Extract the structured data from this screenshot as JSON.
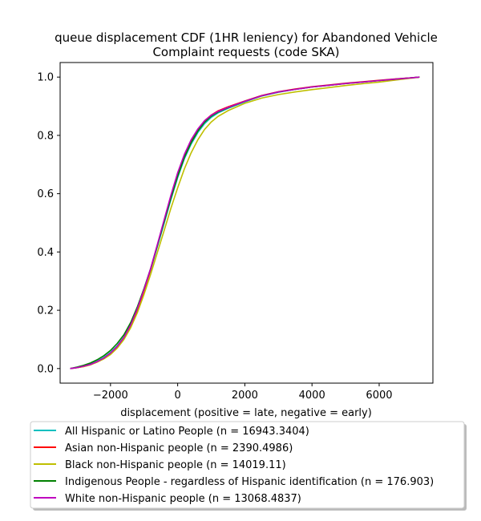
{
  "chart_data": {
    "type": "line",
    "title_lines": [
      "queue displacement CDF (1HR leniency) for Abandoned Vehicle",
      "Complaint  requests (code SKA)"
    ],
    "xlabel": "displacement (positive = late, negative = early)",
    "ylabel": "",
    "xlim": [
      -3500,
      7600
    ],
    "ylim": [
      -0.05,
      1.05
    ],
    "x_ticks": [
      -2000,
      0,
      2000,
      4000,
      6000
    ],
    "x_tick_labels": [
      "−2000",
      "0",
      "2000",
      "4000",
      "6000"
    ],
    "y_ticks": [
      0.0,
      0.2,
      0.4,
      0.6,
      0.8,
      1.0
    ],
    "y_tick_labels": [
      "0.0",
      "0.2",
      "0.4",
      "0.6",
      "0.8",
      "1.0"
    ],
    "grid": false,
    "legend_position": "below plot",
    "series": [
      {
        "name": "All Hispanic or Latino People (n = 16943.3404)",
        "color": "#00bfbf",
        "points": [
          [
            -3200,
            0.0
          ],
          [
            -3000,
            0.003
          ],
          [
            -2800,
            0.008
          ],
          [
            -2600,
            0.015
          ],
          [
            -2400,
            0.025
          ],
          [
            -2200,
            0.038
          ],
          [
            -2000,
            0.055
          ],
          [
            -1800,
            0.078
          ],
          [
            -1600,
            0.108
          ],
          [
            -1400,
            0.15
          ],
          [
            -1200,
            0.205
          ],
          [
            -1000,
            0.27
          ],
          [
            -800,
            0.34
          ],
          [
            -600,
            0.42
          ],
          [
            -400,
            0.5
          ],
          [
            -200,
            0.58
          ],
          [
            0,
            0.655
          ],
          [
            200,
            0.72
          ],
          [
            400,
            0.77
          ],
          [
            600,
            0.81
          ],
          [
            800,
            0.84
          ],
          [
            1000,
            0.862
          ],
          [
            1200,
            0.877
          ],
          [
            1500,
            0.893
          ],
          [
            2000,
            0.915
          ],
          [
            2500,
            0.935
          ],
          [
            3000,
            0.948
          ],
          [
            3500,
            0.958
          ],
          [
            4000,
            0.966
          ],
          [
            4500,
            0.972
          ],
          [
            5000,
            0.978
          ],
          [
            5500,
            0.983
          ],
          [
            6000,
            0.988
          ],
          [
            6500,
            0.993
          ],
          [
            7000,
            0.998
          ],
          [
            7200,
            1.0
          ]
        ]
      },
      {
        "name": "Asian non-Hispanic people (n = 2390.4986)",
        "color": "#ff0000",
        "points": [
          [
            -3200,
            0.0
          ],
          [
            -3000,
            0.003
          ],
          [
            -2800,
            0.007
          ],
          [
            -2600,
            0.013
          ],
          [
            -2400,
            0.022
          ],
          [
            -2200,
            0.034
          ],
          [
            -2000,
            0.05
          ],
          [
            -1800,
            0.072
          ],
          [
            -1600,
            0.102
          ],
          [
            -1400,
            0.145
          ],
          [
            -1200,
            0.2
          ],
          [
            -1000,
            0.268
          ],
          [
            -800,
            0.342
          ],
          [
            -600,
            0.425
          ],
          [
            -400,
            0.508
          ],
          [
            -200,
            0.59
          ],
          [
            0,
            0.665
          ],
          [
            200,
            0.73
          ],
          [
            400,
            0.782
          ],
          [
            600,
            0.82
          ],
          [
            800,
            0.85
          ],
          [
            1000,
            0.87
          ],
          [
            1200,
            0.884
          ],
          [
            1500,
            0.898
          ],
          [
            2000,
            0.918
          ],
          [
            2500,
            0.937
          ],
          [
            3000,
            0.95
          ],
          [
            3500,
            0.959
          ],
          [
            4000,
            0.967
          ],
          [
            4500,
            0.973
          ],
          [
            5000,
            0.979
          ],
          [
            5500,
            0.984
          ],
          [
            6000,
            0.989
          ],
          [
            6500,
            0.994
          ],
          [
            7000,
            0.998
          ],
          [
            7200,
            1.0
          ]
        ]
      },
      {
        "name": "Black non-Hispanic people (n = 14019.11)",
        "color": "#bfbf00",
        "points": [
          [
            -3200,
            0.0
          ],
          [
            -3000,
            0.003
          ],
          [
            -2800,
            0.007
          ],
          [
            -2600,
            0.013
          ],
          [
            -2400,
            0.022
          ],
          [
            -2200,
            0.033
          ],
          [
            -2000,
            0.048
          ],
          [
            -1800,
            0.07
          ],
          [
            -1600,
            0.1
          ],
          [
            -1400,
            0.14
          ],
          [
            -1200,
            0.192
          ],
          [
            -1000,
            0.255
          ],
          [
            -800,
            0.325
          ],
          [
            -600,
            0.4
          ],
          [
            -400,
            0.475
          ],
          [
            -200,
            0.55
          ],
          [
            0,
            0.62
          ],
          [
            200,
            0.685
          ],
          [
            400,
            0.74
          ],
          [
            600,
            0.785
          ],
          [
            800,
            0.82
          ],
          [
            1000,
            0.846
          ],
          [
            1200,
            0.865
          ],
          [
            1500,
            0.885
          ],
          [
            2000,
            0.91
          ],
          [
            2500,
            0.928
          ],
          [
            3000,
            0.94
          ],
          [
            3500,
            0.949
          ],
          [
            4000,
            0.957
          ],
          [
            4500,
            0.964
          ],
          [
            5000,
            0.971
          ],
          [
            5500,
            0.977
          ],
          [
            6000,
            0.983
          ],
          [
            6500,
            0.99
          ],
          [
            7000,
            0.997
          ],
          [
            7200,
            1.0
          ]
        ]
      },
      {
        "name": "Indigenous People - regardless of Hispanic identification (n = 176.903)",
        "color": "#008000",
        "points": [
          [
            -3200,
            0.0
          ],
          [
            -3000,
            0.005
          ],
          [
            -2800,
            0.011
          ],
          [
            -2600,
            0.019
          ],
          [
            -2400,
            0.03
          ],
          [
            -2200,
            0.044
          ],
          [
            -2000,
            0.062
          ],
          [
            -1800,
            0.086
          ],
          [
            -1600,
            0.116
          ],
          [
            -1400,
            0.158
          ],
          [
            -1200,
            0.212
          ],
          [
            -1000,
            0.275
          ],
          [
            -800,
            0.345
          ],
          [
            -600,
            0.425
          ],
          [
            -400,
            0.505
          ],
          [
            -200,
            0.585
          ],
          [
            0,
            0.66
          ],
          [
            200,
            0.725
          ],
          [
            400,
            0.775
          ],
          [
            600,
            0.815
          ],
          [
            800,
            0.845
          ],
          [
            1000,
            0.866
          ],
          [
            1200,
            0.88
          ],
          [
            1500,
            0.895
          ],
          [
            2000,
            0.917
          ],
          [
            2500,
            0.936
          ],
          [
            3000,
            0.949
          ],
          [
            3500,
            0.958
          ],
          [
            4000,
            0.966
          ],
          [
            4500,
            0.972
          ],
          [
            5000,
            0.978
          ],
          [
            5500,
            0.983
          ],
          [
            6000,
            0.988
          ],
          [
            6500,
            0.993
          ],
          [
            7000,
            0.998
          ],
          [
            7200,
            1.0
          ]
        ]
      },
      {
        "name": "White non-Hispanic people (n = 13068.4837)",
        "color": "#bf00bf",
        "points": [
          [
            -3200,
            0.0
          ],
          [
            -3000,
            0.003
          ],
          [
            -2800,
            0.008
          ],
          [
            -2600,
            0.014
          ],
          [
            -2400,
            0.024
          ],
          [
            -2200,
            0.036
          ],
          [
            -2000,
            0.053
          ],
          [
            -1800,
            0.076
          ],
          [
            -1600,
            0.107
          ],
          [
            -1400,
            0.15
          ],
          [
            -1200,
            0.206
          ],
          [
            -1000,
            0.272
          ],
          [
            -800,
            0.345
          ],
          [
            -600,
            0.428
          ],
          [
            -400,
            0.512
          ],
          [
            -200,
            0.595
          ],
          [
            0,
            0.672
          ],
          [
            200,
            0.735
          ],
          [
            400,
            0.785
          ],
          [
            600,
            0.822
          ],
          [
            800,
            0.85
          ],
          [
            1000,
            0.869
          ],
          [
            1200,
            0.882
          ],
          [
            1500,
            0.896
          ],
          [
            2000,
            0.917
          ],
          [
            2500,
            0.936
          ],
          [
            3000,
            0.949
          ],
          [
            3500,
            0.958
          ],
          [
            4000,
            0.966
          ],
          [
            4500,
            0.972
          ],
          [
            5000,
            0.978
          ],
          [
            5500,
            0.983
          ],
          [
            6000,
            0.988
          ],
          [
            6500,
            0.993
          ],
          [
            7000,
            0.998
          ],
          [
            7200,
            1.0
          ]
        ]
      }
    ]
  }
}
